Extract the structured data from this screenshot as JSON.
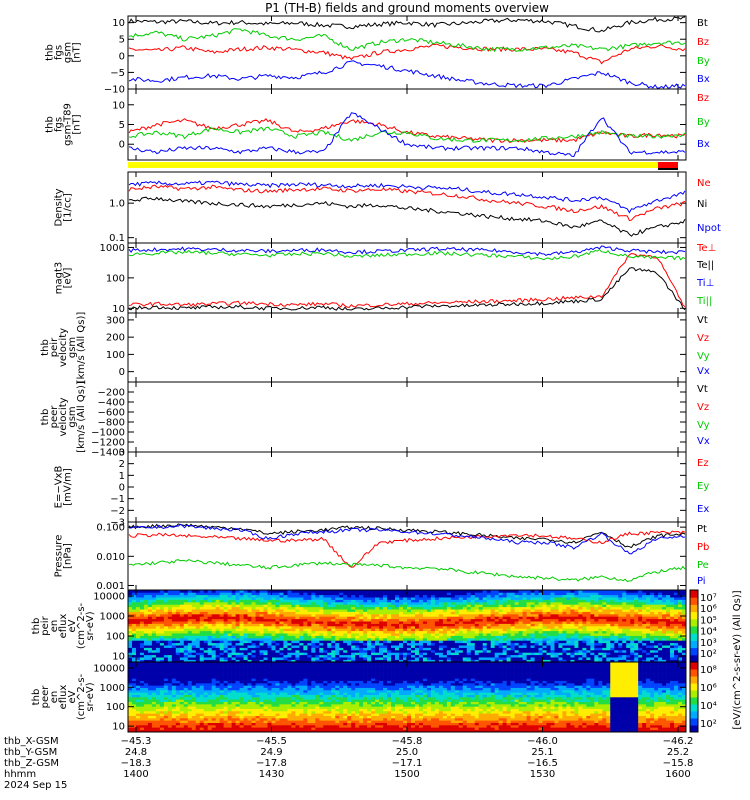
{
  "title": "P1 (TH-B) fields and ground moments overview",
  "date_label": "2024 Sep 15",
  "chart_data": [
    {
      "type": "line",
      "panel": "fgs",
      "ylabel": [
        "thb",
        "fgs",
        "gsm",
        "[nT]"
      ],
      "ylim": [
        -10,
        12
      ],
      "yticks": [
        "10",
        "5",
        "0",
        "−5",
        "−10"
      ],
      "ytick_values": [
        10,
        5,
        0,
        -5,
        -10
      ],
      "series": [
        {
          "name": "Bt",
          "color": "#000000",
          "values": [
            10.5,
            10.2,
            10.4,
            9.8,
            10.1,
            9.6,
            9.9,
            9.2,
            8.8,
            9.5,
            10.0,
            9.3,
            9.8,
            10.5,
            10.8,
            10.4,
            9.0,
            7.5,
            10.0,
            11.0,
            11.2
          ]
        },
        {
          "name": "Bz",
          "color": "#ff0000",
          "values": [
            2,
            1.5,
            2.5,
            1,
            2,
            2.5,
            1.8,
            1,
            -1,
            1,
            2,
            3,
            2.5,
            2,
            2,
            2,
            1,
            -2,
            2,
            3,
            2
          ]
        },
        {
          "name": "By",
          "color": "#00cc00",
          "values": [
            6,
            7,
            5,
            6,
            8,
            6,
            5,
            6,
            2,
            4,
            5,
            4,
            3,
            2,
            2,
            2.5,
            3,
            2,
            3,
            4,
            4
          ]
        },
        {
          "name": "Bx",
          "color": "#0000ff",
          "values": [
            -7,
            -7.5,
            -6.5,
            -6,
            -7,
            -6,
            -6.5,
            -5,
            -2,
            -3,
            -4.5,
            -6,
            -7.5,
            -8.5,
            -9,
            -9,
            -7,
            -5,
            -8,
            -9.5,
            -9
          ]
        }
      ]
    },
    {
      "type": "line",
      "panel": "fgs_dsl",
      "ylabel": [
        "thb",
        "fgs",
        "gsm-T89",
        "[nT]"
      ],
      "ylim": [
        -4,
        14
      ],
      "yticks": [
        "10",
        "5",
        "0"
      ],
      "ytick_values": [
        10,
        5,
        0
      ],
      "series": [
        {
          "name": "Bz",
          "color": "#ff0000",
          "values": [
            3,
            5,
            6,
            4,
            5,
            6,
            3,
            4,
            6,
            5,
            3,
            2,
            1.5,
            1,
            1,
            1,
            1,
            3,
            2,
            2.5,
            2
          ]
        },
        {
          "name": "By",
          "color": "#00cc00",
          "values": [
            2,
            3,
            2,
            4,
            3,
            4,
            2,
            3,
            1,
            3,
            3,
            1.5,
            1,
            1,
            1,
            1.5,
            2,
            3,
            2,
            2,
            2.5
          ]
        },
        {
          "name": "Bx",
          "color": "#0000ff",
          "values": [
            -1,
            -2,
            -1,
            -1,
            -2,
            -1,
            -2,
            -2,
            8,
            4,
            0,
            -1,
            -1,
            -1,
            -1,
            -2,
            -3,
            7,
            -2,
            -2,
            -2
          ]
        }
      ]
    },
    {
      "type": "line",
      "panel": "density",
      "ylabel": [
        "Density",
        "[1/cc]"
      ],
      "ylim": [
        0.07,
        8
      ],
      "log": true,
      "yticks": [
        "1.0",
        "0.1"
      ],
      "ytick_values": [
        1.0,
        0.1
      ],
      "series": [
        {
          "name": "Ne",
          "color": "#ff0000",
          "values": [
            2.5,
            3.0,
            2.6,
            2.9,
            2.4,
            2.2,
            2.5,
            2.6,
            2.3,
            2.5,
            2.2,
            1.9,
            1.6,
            1.2,
            1.0,
            0.8,
            0.6,
            0.8,
            0.35,
            0.7,
            1.0
          ]
        },
        {
          "name": "Ni",
          "color": "#000000",
          "values": [
            1.2,
            1.4,
            1.1,
            1.0,
            0.9,
            0.8,
            0.9,
            1.0,
            0.8,
            0.9,
            0.7,
            0.6,
            0.5,
            0.4,
            0.35,
            0.3,
            0.2,
            0.3,
            0.12,
            0.2,
            0.3
          ]
        },
        {
          "name": "Npot",
          "color": "#0000ff",
          "values": [
            3.5,
            3.8,
            3.6,
            4.0,
            3.5,
            3.2,
            3.5,
            3.4,
            3.1,
            3.3,
            3.0,
            2.8,
            2.5,
            2.0,
            1.8,
            1.5,
            1.2,
            1.5,
            0.6,
            1.2,
            2.0
          ]
        }
      ],
      "legend": [
        "Ne",
        "Ni",
        "Npot"
      ]
    },
    {
      "type": "line",
      "panel": "temperature",
      "ylabel": [
        "magt3",
        "[eV]"
      ],
      "ylim": [
        7,
        1400
      ],
      "log": true,
      "yticks": [
        "1000",
        "100",
        "10"
      ],
      "ytick_values": [
        1000,
        100,
        10
      ],
      "series": [
        {
          "name": "Te⊥",
          "color": "#ff0000",
          "values": [
            13,
            14,
            13,
            14,
            15,
            14,
            13,
            14,
            12,
            13,
            14,
            15,
            16,
            17,
            18,
            20,
            22,
            25,
            600,
            500,
            10
          ]
        },
        {
          "name": "Te||",
          "color": "#000000",
          "values": [
            10,
            11,
            10,
            11,
            11,
            10,
            10,
            11,
            9,
            10,
            11,
            12,
            12,
            13,
            14,
            15,
            17,
            20,
            200,
            150,
            9
          ]
        },
        {
          "name": "Ti⊥",
          "color": "#0000ff",
          "values": [
            800,
            850,
            900,
            850,
            800,
            750,
            800,
            850,
            700,
            750,
            800,
            900,
            850,
            800,
            700,
            600,
            700,
            1000,
            800,
            700,
            700
          ]
        },
        {
          "name": "Ti||",
          "color": "#00cc00",
          "values": [
            600,
            650,
            700,
            650,
            600,
            550,
            600,
            650,
            500,
            550,
            600,
            650,
            600,
            550,
            500,
            420,
            500,
            800,
            500,
            450,
            450
          ]
        }
      ],
      "legend": [
        "Te⊥",
        "Te||",
        "Ti⊥",
        "Ti||"
      ]
    },
    {
      "type": "line",
      "panel": "peir_velocity",
      "ylabel": [
        "thb",
        "peir",
        "velocity",
        "gsm",
        "[km/s (All Qs)]"
      ],
      "ylim": [
        -60,
        340
      ],
      "yticks": [
        "300",
        "200",
        "100",
        "0",
        "−100"
      ],
      "ytick_values": [
        300,
        200,
        100,
        0,
        -100
      ],
      "series": [],
      "legend": [
        "Vt",
        "Vz",
        "Vy",
        "Vx"
      ]
    },
    {
      "type": "line",
      "panel": "peer_velocity",
      "ylabel": [
        "thb",
        "peer",
        "velocity",
        "gsm",
        "[km/s (All Qs)]"
      ],
      "ylim": [
        -1400,
        0
      ],
      "yticks": [
        "−200",
        "−400",
        "−600",
        "−800",
        "−1000",
        "−1200",
        "−1400"
      ],
      "ytick_values": [
        -200,
        -400,
        -600,
        -800,
        -1000,
        -1200,
        -1400
      ],
      "series": [],
      "legend": [
        "Vt",
        "Vz",
        "Vy",
        "Vx"
      ]
    },
    {
      "type": "line",
      "panel": "efield",
      "ylabel": [
        "E=−VxB",
        "[mV/m]"
      ],
      "ylim": [
        -3,
        3
      ],
      "yticks": [
        "3",
        "2",
        "1",
        "0",
        "−1",
        "−2",
        "−3"
      ],
      "ytick_values": [
        3,
        2,
        1,
        0,
        -1,
        -2,
        -3
      ],
      "series": [],
      "legend": [
        "Ez",
        "Ey",
        "Ex"
      ]
    },
    {
      "type": "line",
      "panel": "pressure",
      "ylabel": [
        "Pressure",
        "[nPa]"
      ],
      "ylim": [
        0.0007,
        0.15
      ],
      "log": true,
      "yticks": [
        "0.100",
        "0.010",
        "0.001"
      ],
      "ytick_values": [
        0.1,
        0.01,
        0.001
      ],
      "series": [
        {
          "name": "Pt",
          "color": "#000000",
          "values": [
            0.1,
            0.11,
            0.12,
            0.1,
            0.09,
            0.06,
            0.07,
            0.08,
            0.1,
            0.09,
            0.08,
            0.07,
            0.06,
            0.05,
            0.04,
            0.04,
            0.03,
            0.07,
            0.02,
            0.05,
            0.06
          ]
        },
        {
          "name": "Pb",
          "color": "#ff0000",
          "values": [
            0.05,
            0.055,
            0.05,
            0.045,
            0.04,
            0.035,
            0.035,
            0.04,
            0.004,
            0.03,
            0.035,
            0.04,
            0.045,
            0.05,
            0.055,
            0.05,
            0.04,
            0.03,
            0.06,
            0.065,
            0.065
          ]
        },
        {
          "name": "Pe",
          "color": "#00cc00",
          "values": [
            0.005,
            0.006,
            0.007,
            0.006,
            0.005,
            0.004,
            0.005,
            0.006,
            0.005,
            0.005,
            0.004,
            0.004,
            0.003,
            0.0025,
            0.002,
            0.0018,
            0.0015,
            0.002,
            0.0015,
            0.003,
            0.004
          ]
        },
        {
          "name": "Pi",
          "color": "#0000ff",
          "values": [
            0.09,
            0.1,
            0.11,
            0.09,
            0.08,
            0.04,
            0.06,
            0.07,
            0.08,
            0.08,
            0.07,
            0.06,
            0.05,
            0.04,
            0.03,
            0.03,
            0.02,
            0.06,
            0.012,
            0.04,
            0.05
          ]
        }
      ],
      "legend": [
        "Pt",
        "Pb",
        "Pe",
        "Pi"
      ]
    },
    {
      "type": "heatmap",
      "panel": "peir_spectrogram",
      "ylabel": [
        "thb",
        "peir",
        "en",
        "eflux",
        "eV",
        "(cm^2-s-",
        "sr-eV)"
      ],
      "ylim": [
        5,
        20000
      ],
      "log": true,
      "yticks": [
        "10000",
        "1000",
        "100",
        "10"
      ],
      "ytick_values": [
        10000,
        1000,
        100,
        10
      ],
      "colorbar": {
        "label": "[eV/(cm^2-s-sr-eV) (All Qs)]",
        "ticks": [
          "10⁷",
          "10⁶",
          "10⁵",
          "10⁴",
          "10³",
          "10²"
        ]
      }
    },
    {
      "type": "heatmap",
      "panel": "peer_spectrogram",
      "ylabel": [
        "thb",
        "peer",
        "en",
        "eflux",
        "eV",
        "(cm^2-s-",
        "sr-eV)"
      ],
      "ylim": [
        5,
        20000
      ],
      "log": true,
      "yticks": [
        "10000",
        "1000",
        "100",
        "10"
      ],
      "ytick_values": [
        10000,
        1000,
        100,
        10
      ],
      "colorbar": {
        "label": "[eV/(cm^2-s-sr-eV)]",
        "ticks": [
          "10⁸",
          "10⁶",
          "10⁴",
          "10²"
        ]
      }
    }
  ],
  "x_axis": {
    "rows": [
      {
        "label": "thb_X-GSM",
        "values": [
          "−45.3",
          "−45.5",
          "−45.8",
          "−46.0",
          "−46.2"
        ]
      },
      {
        "label": "thb_Y-GSM",
        "values": [
          "24.8",
          "24.9",
          "25.0",
          "25.1",
          "25.2"
        ]
      },
      {
        "label": "thb_Z-GSM",
        "values": [
          "−18.3",
          "−17.8",
          "−17.1",
          "−16.5",
          "−15.8"
        ]
      },
      {
        "label": "hhmm",
        "values": [
          "1400",
          "1430",
          "1500",
          "1530",
          "1600"
        ]
      }
    ]
  }
}
